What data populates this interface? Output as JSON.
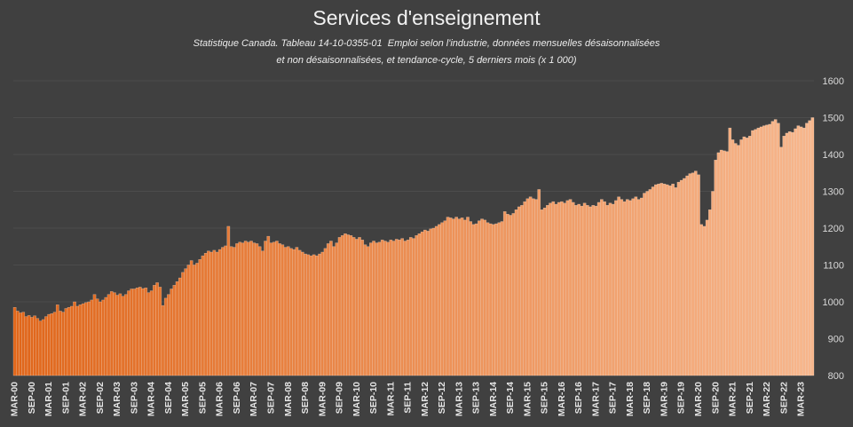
{
  "chart_data": {
    "type": "bar",
    "title": "Services d'enseignement",
    "subtitle": [
      "Statistique Canada. Tableau 14-10-0355-01  Emploi selon l'industrie, données mensuelles désaisonnalisées",
      "et non désaisonnalisées, et tendance-cycle, 5 derniers mois (x 1 000)"
    ],
    "ylim": [
      800,
      1600
    ],
    "y_ticks": [
      800,
      900,
      1000,
      1100,
      1200,
      1300,
      1400,
      1500,
      1600
    ],
    "y_axis_side": "right",
    "grid": true,
    "x_tick_labels": [
      "MAR-00",
      "SEP-00",
      "MAR-01",
      "SEP-01",
      "MAR-02",
      "SEP-02",
      "MAR-03",
      "SEP-03",
      "MAR-04",
      "SEP-04",
      "MAR-05",
      "SEP-05",
      "MAR-06",
      "SEP-06",
      "MAR-07",
      "SEP-07",
      "MAR-08",
      "SEP-08",
      "MAR-09",
      "SEP-09",
      "MAR-10",
      "SEP-10",
      "MAR-11",
      "SEP-11",
      "MAR-12",
      "SEP-12",
      "MAR-13",
      "SEP-13",
      "MAR-14",
      "SEP-14",
      "MAR-15",
      "SEP-15",
      "MAR-16",
      "SEP-16",
      "MAR-17",
      "SEP-17",
      "MAR-18",
      "SEP-18",
      "MAR-19",
      "SEP-19",
      "MAR-20",
      "SEP-20",
      "MAR-21",
      "SEP-21",
      "MAR-22",
      "SEP-22",
      "MAR-23"
    ],
    "values": [
      985,
      975,
      970,
      972,
      960,
      963,
      958,
      962,
      955,
      948,
      952,
      960,
      966,
      968,
      972,
      992,
      975,
      972,
      982,
      985,
      988,
      1000,
      988,
      992,
      995,
      998,
      1000,
      1005,
      1020,
      1008,
      1000,
      1005,
      1012,
      1020,
      1028,
      1025,
      1018,
      1022,
      1015,
      1020,
      1030,
      1035,
      1035,
      1038,
      1040,
      1036,
      1038,
      1025,
      1030,
      1045,
      1052,
      1040,
      990,
      1010,
      1020,
      1035,
      1045,
      1055,
      1065,
      1080,
      1090,
      1100,
      1112,
      1100,
      1105,
      1115,
      1125,
      1132,
      1138,
      1135,
      1140,
      1135,
      1142,
      1148,
      1152,
      1205,
      1150,
      1148,
      1158,
      1162,
      1160,
      1165,
      1162,
      1165,
      1160,
      1158,
      1150,
      1138,
      1165,
      1178,
      1160,
      1162,
      1165,
      1158,
      1155,
      1148,
      1150,
      1145,
      1142,
      1148,
      1140,
      1135,
      1130,
      1128,
      1125,
      1128,
      1125,
      1130,
      1135,
      1145,
      1158,
      1165,
      1150,
      1160,
      1175,
      1180,
      1185,
      1182,
      1180,
      1175,
      1170,
      1175,
      1168,
      1155,
      1150,
      1160,
      1165,
      1160,
      1162,
      1168,
      1165,
      1162,
      1168,
      1165,
      1170,
      1168,
      1172,
      1165,
      1168,
      1175,
      1172,
      1180,
      1185,
      1190,
      1195,
      1192,
      1198,
      1200,
      1205,
      1210,
      1215,
      1220,
      1230,
      1228,
      1225,
      1230,
      1225,
      1228,
      1222,
      1230,
      1218,
      1210,
      1212,
      1220,
      1225,
      1222,
      1215,
      1212,
      1210,
      1212,
      1215,
      1218,
      1245,
      1238,
      1235,
      1240,
      1250,
      1258,
      1262,
      1272,
      1280,
      1285,
      1280,
      1278,
      1305,
      1250,
      1255,
      1262,
      1268,
      1272,
      1265,
      1270,
      1272,
      1268,
      1275,
      1278,
      1270,
      1262,
      1265,
      1260,
      1268,
      1262,
      1258,
      1262,
      1260,
      1270,
      1278,
      1272,
      1262,
      1268,
      1265,
      1275,
      1285,
      1278,
      1272,
      1278,
      1275,
      1280,
      1285,
      1278,
      1282,
      1295,
      1300,
      1305,
      1312,
      1318,
      1320,
      1322,
      1320,
      1318,
      1315,
      1320,
      1310,
      1325,
      1330,
      1335,
      1342,
      1348,
      1350,
      1355,
      1345,
      1210,
      1205,
      1222,
      1250,
      1300,
      1385,
      1405,
      1412,
      1410,
      1408,
      1472,
      1440,
      1430,
      1425,
      1440,
      1448,
      1445,
      1450,
      1465,
      1468,
      1472,
      1475,
      1478,
      1480,
      1482,
      1490,
      1495,
      1485,
      1420,
      1450,
      1458,
      1462,
      1460,
      1470,
      1478,
      1475,
      1472,
      1485,
      1492,
      1500
    ],
    "colors": {
      "background": "#404040",
      "bar_start": "#E0661A",
      "bar_end": "#F7B68C",
      "bar_edge": "#FBE3D2",
      "gridline": "#4C4C4C",
      "text": "#F2F2F2"
    }
  }
}
